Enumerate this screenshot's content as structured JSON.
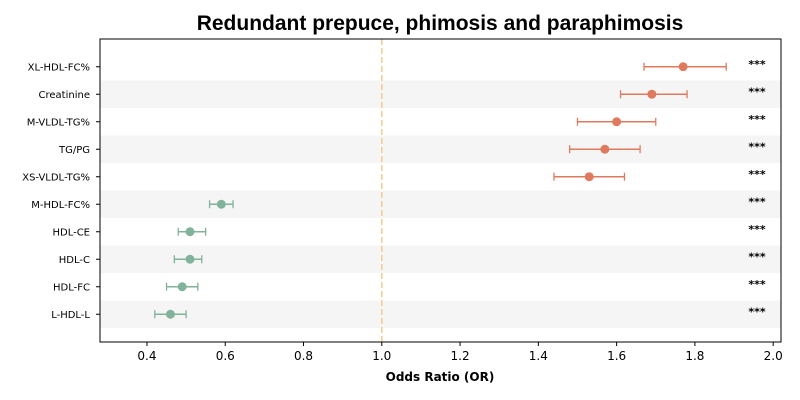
{
  "chart_data": {
    "type": "forest",
    "title": "Redundant prepuce, phimosis and paraphimosis",
    "xlabel": "Odds Ratio (OR)",
    "ylabel": "",
    "xlim": [
      0.28,
      2.02
    ],
    "xticks": [
      "0.4",
      "0.6",
      "0.8",
      "1.0",
      "1.2",
      "1.4",
      "1.6",
      "1.8",
      "2.0"
    ],
    "reference_line": 1.0,
    "rows": [
      {
        "label": "XL-HDL-FC%",
        "or": 1.77,
        "ci_low": 1.67,
        "ci_high": 1.88,
        "sig": "***",
        "direction": "risk"
      },
      {
        "label": "Creatinine",
        "or": 1.69,
        "ci_low": 1.61,
        "ci_high": 1.78,
        "sig": "***",
        "direction": "risk"
      },
      {
        "label": "M-VLDL-TG%",
        "or": 1.6,
        "ci_low": 1.5,
        "ci_high": 1.7,
        "sig": "***",
        "direction": "risk"
      },
      {
        "label": "TG/PG",
        "or": 1.57,
        "ci_low": 1.48,
        "ci_high": 1.66,
        "sig": "***",
        "direction": "risk"
      },
      {
        "label": "XS-VLDL-TG%",
        "or": 1.53,
        "ci_low": 1.44,
        "ci_high": 1.62,
        "sig": "***",
        "direction": "risk"
      },
      {
        "label": "M-HDL-FC%",
        "or": 0.59,
        "ci_low": 0.56,
        "ci_high": 0.62,
        "sig": "***",
        "direction": "protective"
      },
      {
        "label": "HDL-CE",
        "or": 0.51,
        "ci_low": 0.48,
        "ci_high": 0.55,
        "sig": "***",
        "direction": "protective"
      },
      {
        "label": "HDL-C",
        "or": 0.51,
        "ci_low": 0.47,
        "ci_high": 0.54,
        "sig": "***",
        "direction": "protective"
      },
      {
        "label": "HDL-FC",
        "or": 0.49,
        "ci_low": 0.45,
        "ci_high": 0.53,
        "sig": "***",
        "direction": "protective"
      },
      {
        "label": "L-HDL-L",
        "or": 0.46,
        "ci_low": 0.42,
        "ci_high": 0.5,
        "sig": "***",
        "direction": "protective"
      }
    ],
    "colors": {
      "risk": "#e07a5f",
      "protective": "#81b29a",
      "reference": "#f2cc8f",
      "stripe": "#f5f5f5"
    },
    "grid": false,
    "legend": "none"
  }
}
